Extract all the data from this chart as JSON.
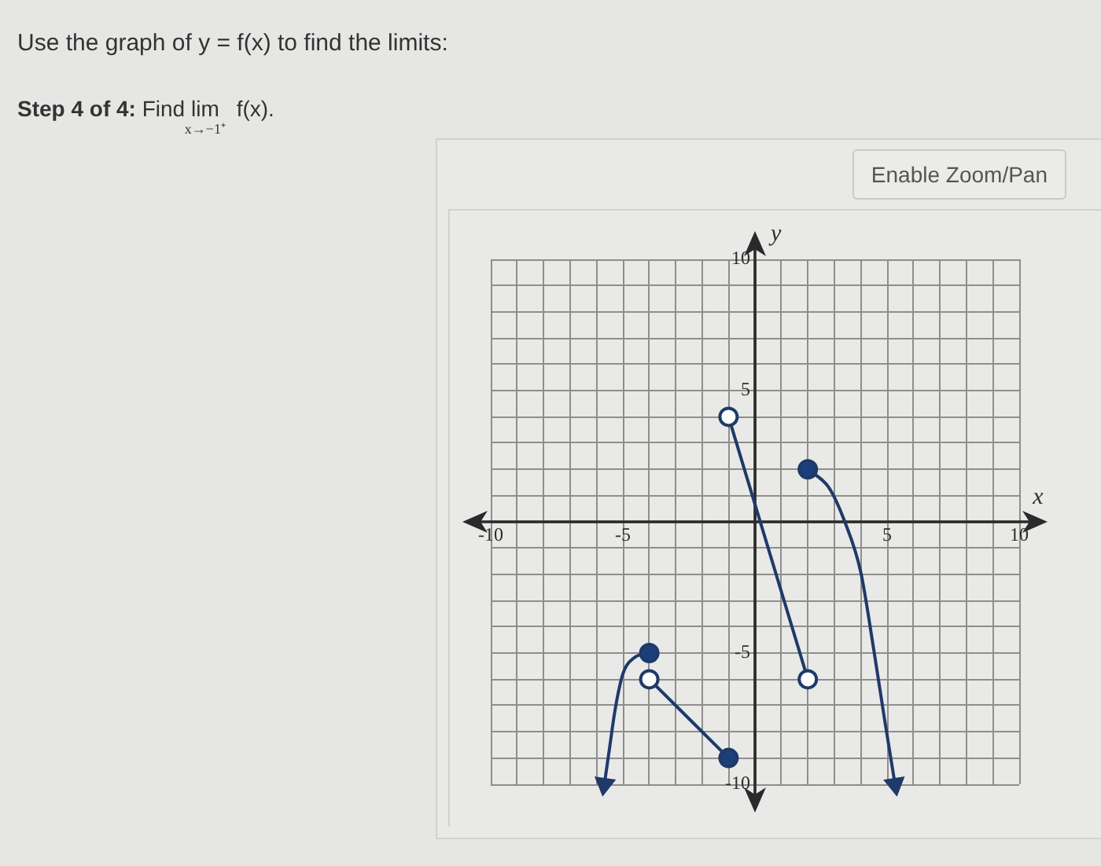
{
  "chart_data": {
    "type": "line",
    "title": "Use the graph of y = f(x) to find the limits:",
    "subtitle": "Step 4 of 4: Find lim$_{x→−1⁺}$ f(x).",
    "xlabel": "x",
    "ylabel": "y",
    "annotations": [
      "Enable Zoom/Pan"
    ],
    "xlim": [
      -10,
      10
    ],
    "ylim": [
      -10,
      10
    ],
    "xticks": [
      -10,
      {
        "value": -9,
        "label": null
      },
      {
        "value": -8,
        "label": null
      },
      {
        "value": -7,
        "label": null
      },
      {
        "value": -6,
        "label": null
      },
      -5,
      {
        "value": -4,
        "label": null
      },
      {
        "value": -3,
        "label": null
      },
      {
        "value": -2,
        "label": null
      },
      {
        "value": -1,
        "label": null
      },
      {
        "value": 0,
        "label": null
      },
      {
        "value": 1,
        "label": null
      },
      {
        "value": 2,
        "label": null
      },
      {
        "value": 3,
        "label": null
      },
      {
        "value": 4,
        "label": null
      },
      5,
      {
        "value": 6,
        "label": null
      },
      {
        "value": 7,
        "label": null
      },
      {
        "value": 8,
        "label": null
      },
      {
        "value": 9,
        "label": null
      },
      10
    ],
    "yticks": [
      -10,
      {
        "value": -9,
        "label": null
      },
      {
        "value": -8,
        "label": null
      },
      {
        "value": -7,
        "label": null
      },
      {
        "value": -6,
        "label": null
      },
      -5,
      {
        "value": -4,
        "label": null
      },
      {
        "value": -3,
        "label": null
      },
      {
        "value": -2,
        "label": null
      },
      {
        "value": -1,
        "label": null
      },
      {
        "value": 0,
        "label": null
      },
      {
        "value": 1,
        "label": null
      },
      {
        "value": 2,
        "label": null
      },
      {
        "value": 3,
        "label": null
      },
      {
        "value": 4,
        "label": null
      },
      5,
      {
        "value": 6,
        "label": null
      },
      {
        "value": 7,
        "label": null
      },
      {
        "value": 8,
        "label": null
      },
      {
        "value": 9,
        "label": null
      },
      10
    ],
    "grid": true,
    "series": [
      {
        "type": "line",
        "color": "#1f3a68",
        "x": [
          -5.7,
          -5.5,
          -5.3,
          -5.0,
          -4.6,
          -4
        ],
        "values": [
          -10,
          -8.6,
          -7.2,
          -5.8,
          -5.2,
          -5
        ]
      },
      {
        "type": "line",
        "color": "#1f3a68",
        "x": [
          -4,
          -1
        ],
        "values": [
          -6,
          -9
        ]
      },
      {
        "type": "line",
        "color": "#1f3a68",
        "x": [
          -1,
          2
        ],
        "values": [
          4,
          -6
        ]
      },
      {
        "type": "line",
        "color": "#1f3a68",
        "x": [
          2,
          2.8,
          3.4,
          4,
          4.5,
          4.9,
          5.3
        ],
        "values": [
          2,
          1.3,
          0,
          -1.9,
          -4.9,
          -7.5,
          -10
        ]
      },
      {
        "type": "scatter",
        "marker": "circle",
        "color": "#1c3f7c",
        "x": [
          -4,
          -1,
          2
        ],
        "values": [
          -5,
          -9,
          2
        ]
      },
      {
        "type": "scatter",
        "marker": "circle",
        "color": "#ffffff",
        "x": [
          -4,
          -1,
          2
        ],
        "values": [
          -6,
          4,
          -6
        ]
      }
    ]
  }
}
